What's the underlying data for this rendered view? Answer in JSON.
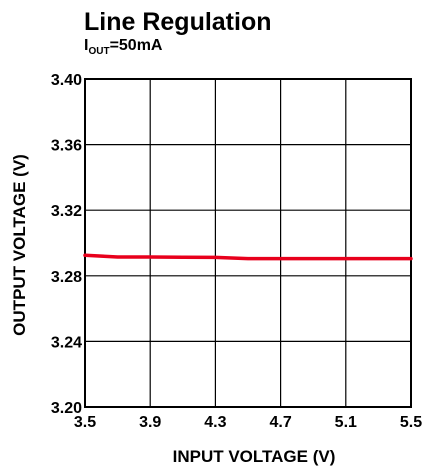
{
  "chart_data": {
    "type": "line",
    "title": "Line Regulation",
    "subtitle": {
      "prefix": "I",
      "subscript": "OUT",
      "suffix": "=50mA"
    },
    "xlabel": "INPUT VOLTAGE (V)",
    "ylabel": "OUTPUT VOLTAGE (V)",
    "xlim": [
      3.5,
      5.5
    ],
    "ylim": [
      3.2,
      3.4
    ],
    "x_ticks": [
      "3.5",
      "3.9",
      "4.3",
      "4.7",
      "5.1",
      "5.5"
    ],
    "y_ticks": [
      "3.20",
      "3.24",
      "3.28",
      "3.32",
      "3.36",
      "3.40"
    ],
    "grid": true,
    "series": [
      {
        "color": "#e8001c",
        "x": [
          3.5,
          3.7,
          3.9,
          4.1,
          4.3,
          4.5,
          4.7,
          4.9,
          5.1,
          5.3,
          5.5
        ],
        "y": [
          3.2925,
          3.2915,
          3.2915,
          3.2913,
          3.2912,
          3.2905,
          3.2905,
          3.2905,
          3.2905,
          3.2905,
          3.2905
        ]
      }
    ]
  }
}
